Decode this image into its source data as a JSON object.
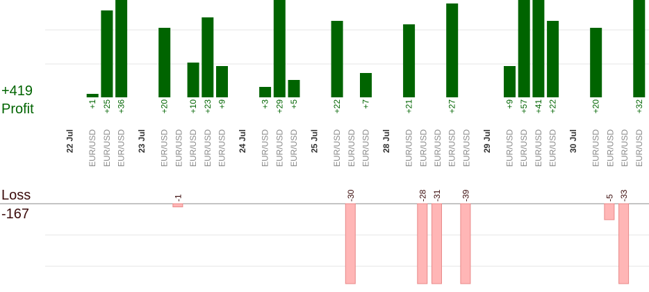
{
  "summary": {
    "profit_total": "+419",
    "profit_label": "Profit",
    "loss_label": "Loss",
    "loss_total": "-167"
  },
  "colors": {
    "profit_bar": "#006400",
    "profit_text": "#006400",
    "loss_bar": "#ffb6b6",
    "loss_bar_border": "#e88888",
    "loss_text": "#3a0a0a",
    "pair_text": "#8a8a8a",
    "date_text": "#333333",
    "grid": "#e6e6e6",
    "baseline": "#888888"
  },
  "chart_data": {
    "type": "bar",
    "ylim_profit": [
      0,
      30
    ],
    "ylim_loss": [
      -25,
      0
    ],
    "groups": [
      {
        "date": "22 Jul",
        "trades": [
          {
            "pair": "EUR/USD",
            "value": 1
          },
          {
            "pair": "EUR/USD",
            "value": 25
          },
          {
            "pair": "EUR/USD",
            "value": 36
          }
        ]
      },
      {
        "date": "23 Jul",
        "trades": [
          {
            "pair": "EUR/USD",
            "value": 20
          },
          {
            "pair": "EUR/USD",
            "value": -1
          },
          {
            "pair": "EUR/USD",
            "value": 10
          },
          {
            "pair": "EUR/USD",
            "value": 23
          },
          {
            "pair": "EUR/USD",
            "value": 9
          }
        ]
      },
      {
        "date": "24 Jul",
        "trades": [
          {
            "pair": "EUR/USD",
            "value": 3
          },
          {
            "pair": "EUR/USD",
            "value": 29
          },
          {
            "pair": "EUR/USD",
            "value": 5
          }
        ]
      },
      {
        "date": "25 Jul",
        "trades": [
          {
            "pair": "EUR/USD",
            "value": 22
          },
          {
            "pair": "EUR/USD",
            "value": -30
          },
          {
            "pair": "EUR/USD",
            "value": 7
          }
        ]
      },
      {
        "date": "28 Jul",
        "trades": [
          {
            "pair": "EUR/USD",
            "value": 21
          },
          {
            "pair": "EUR/USD",
            "value": -28
          },
          {
            "pair": "EUR/USD",
            "value": -31
          },
          {
            "pair": "EUR/USD",
            "value": 27
          },
          {
            "pair": "EUR/USD",
            "value": -39
          }
        ]
      },
      {
        "date": "29 Jul",
        "trades": [
          {
            "pair": "EUR/USD",
            "value": 9
          },
          {
            "pair": "EUR/USD",
            "value": 57
          },
          {
            "pair": "EUR/USD",
            "value": 41
          },
          {
            "pair": "EUR/USD",
            "value": 22
          }
        ]
      },
      {
        "date": "30 Jul",
        "trades": [
          {
            "pair": "EUR/USD",
            "value": 20
          },
          {
            "pair": "EUR/USD",
            "value": -5
          },
          {
            "pair": "EUR/USD",
            "value": -33
          },
          {
            "pair": "EUR/USD",
            "value": 32
          }
        ]
      }
    ]
  }
}
